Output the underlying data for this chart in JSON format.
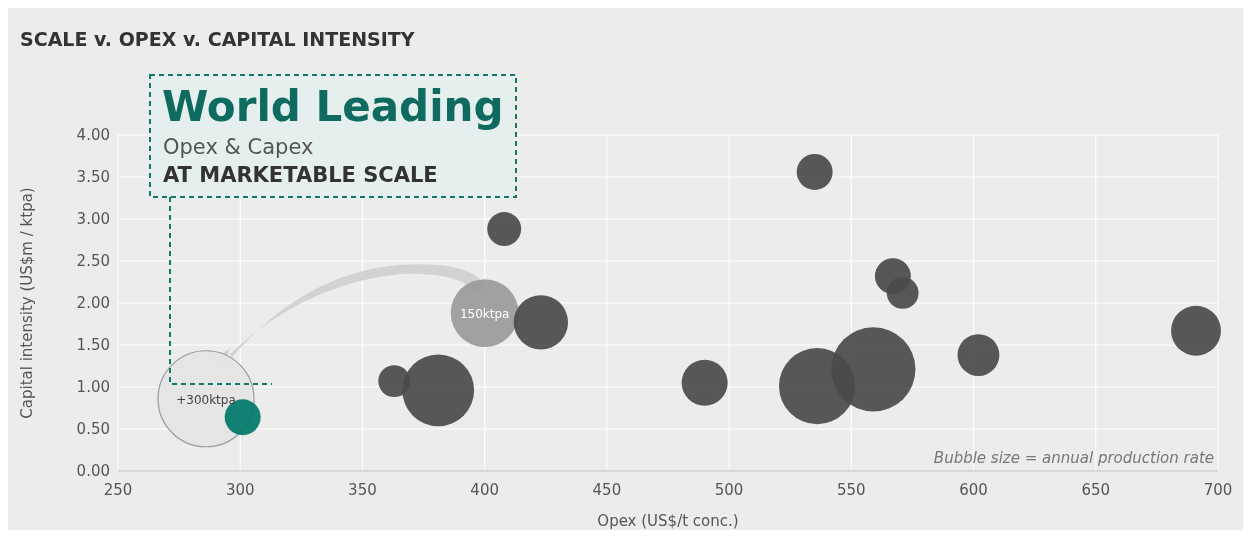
{
  "chart_data": {
    "type": "bubble",
    "title": "SCALE v. OPEX v. CAPITAL INTENSITY",
    "xlabel": "Opex (US$/t conc.)",
    "ylabel": "Capital intensity (US$m / ktpa)",
    "xlim": [
      250,
      700
    ],
    "xticks": [
      250,
      300,
      350,
      400,
      450,
      500,
      550,
      600,
      650,
      700
    ],
    "ylim": [
      0,
      4
    ],
    "yticks": [
      {
        "value": 0,
        "label": "0.00"
      },
      {
        "value": 0.5,
        "label": "0.50"
      },
      {
        "value": 1,
        "label": "1.00"
      },
      {
        "value": 1.5,
        "label": "1.50"
      },
      {
        "value": 2,
        "label": "2.00"
      },
      {
        "value": 2.5,
        "label": "2.50"
      },
      {
        "value": 3,
        "label": "3.00"
      },
      {
        "value": 3.5,
        "label": "3.50"
      },
      {
        "value": 4,
        "label": "4.00"
      }
    ],
    "grid": true,
    "series": [
      {
        "x": [
          286,
          301,
          400,
          363,
          381,
          408,
          423,
          490,
          535,
          536,
          559,
          567,
          571,
          602,
          691
        ],
        "values": [
          0.86,
          0.64,
          1.88,
          1.07,
          0.96,
          2.88,
          1.77,
          1.05,
          3.56,
          1.01,
          1.21,
          2.32,
          2.12,
          1.38,
          1.67
        ],
        "sizes": [
          1,
          0.14,
          0.5,
          0.11,
          0.56,
          0.125,
          0.32,
          0.23,
          0.14,
          0.63,
          0.77,
          0.14,
          0.11,
          0.19,
          0.27
        ],
        "colors": [
          "#e4e4e4",
          "#00786a",
          "#9a9a9a",
          "#4a4a4a",
          "#4a4a4a",
          "#4a4a4a",
          "#4a4a4a",
          "#4a4a4a",
          "#4a4a4a",
          "#4a4a4a",
          "#4a4a4a",
          "#4a4a4a",
          "#4a4a4a",
          "#4a4a4a",
          "#4a4a4a"
        ]
      }
    ],
    "annotations": [
      "World Leading",
      "Opex & Capex",
      "AT MARKETABLE SCALE",
      "Bubble size = annual production rate",
      {
        "text": "+300ktpa",
        "x": 286,
        "y": 0.86
      },
      {
        "text": "150ktpa",
        "x": 400,
        "y": 1.88
      }
    ]
  }
}
